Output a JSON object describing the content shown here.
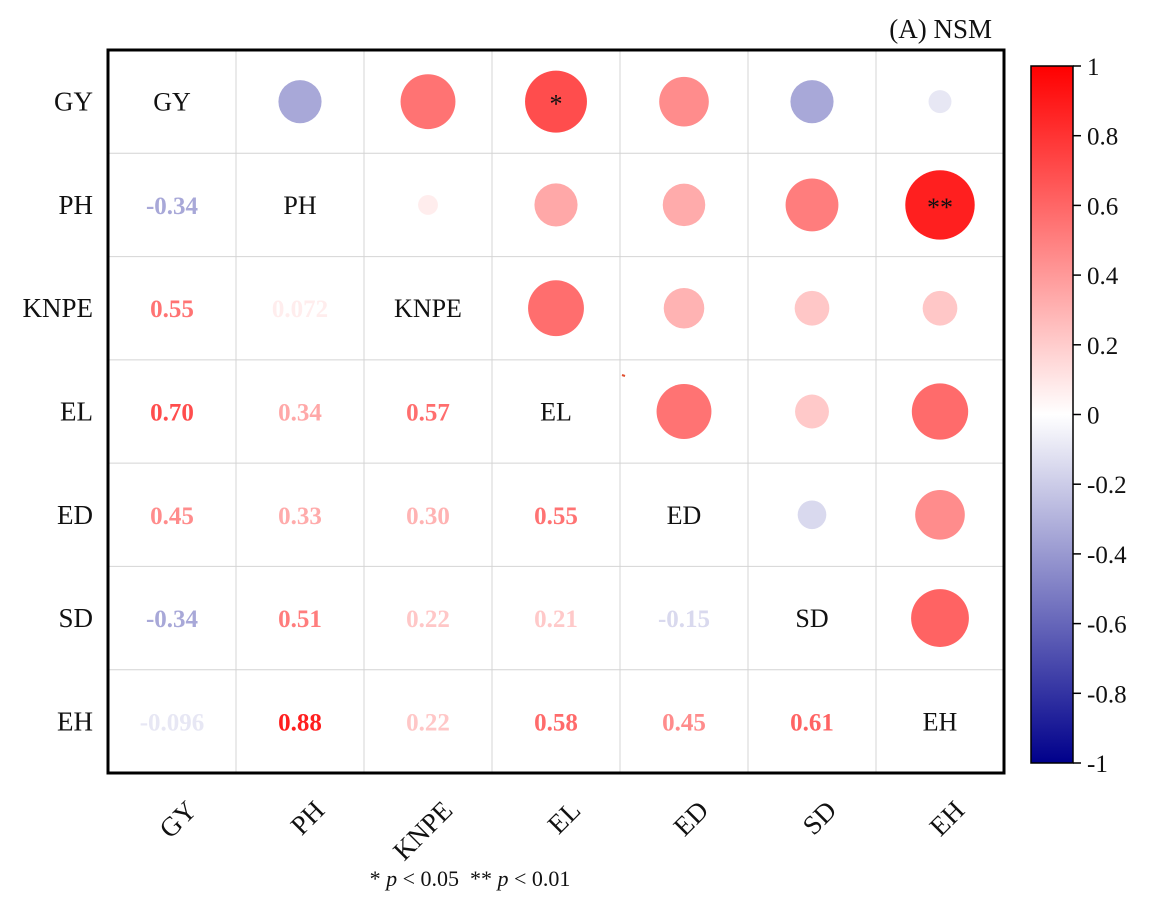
{
  "chart_data": {
    "type": "heatmap",
    "subtype": "correlation-matrix",
    "title": "(A) NSM",
    "variables": [
      "GY",
      "PH",
      "KNPE",
      "EL",
      "ED",
      "SD",
      "EH"
    ],
    "correlations": [
      [
        1,
        -0.34,
        0.55,
        0.7,
        0.45,
        -0.34,
        -0.096
      ],
      [
        -0.34,
        1,
        0.072,
        0.34,
        0.33,
        0.51,
        0.88
      ],
      [
        0.55,
        0.072,
        1,
        0.57,
        0.3,
        0.22,
        0.22
      ],
      [
        0.7,
        0.34,
        0.57,
        1,
        0.55,
        0.21,
        0.58
      ],
      [
        0.45,
        0.33,
        0.3,
        0.55,
        1,
        -0.15,
        0.45
      ],
      [
        -0.34,
        0.51,
        0.22,
        0.21,
        -0.15,
        1,
        0.61
      ],
      [
        -0.096,
        0.88,
        0.22,
        0.58,
        0.45,
        0.61,
        1
      ]
    ],
    "lower_labels": [
      [
        "",
        "",
        "",
        "",
        "",
        "",
        ""
      ],
      [
        "-0.34",
        "",
        "",
        "",
        "",
        "",
        ""
      ],
      [
        "0.55",
        "0.072",
        "",
        "",
        "",
        "",
        ""
      ],
      [
        "0.70",
        "0.34",
        "0.57",
        "",
        "",
        "",
        ""
      ],
      [
        "0.45",
        "0.33",
        "0.30",
        "0.55",
        "",
        "",
        ""
      ],
      [
        "-0.34",
        "0.51",
        "0.22",
        "0.21",
        "-0.15",
        "",
        ""
      ],
      [
        "-0.096",
        "0.88",
        "0.22",
        "0.58",
        "0.45",
        "0.61",
        ""
      ]
    ],
    "significance": [
      {
        "row": 0,
        "col": 3,
        "mark": "*"
      },
      {
        "row": 1,
        "col": 6,
        "mark": "**"
      }
    ],
    "upper_display": "circles",
    "lower_display": "numbers",
    "diagonal_display": "variable names",
    "colorbar": {
      "range": [
        -1,
        1
      ],
      "ticks": [
        "1",
        "0.8",
        "0.6",
        "0.4",
        "0.2",
        "0",
        "-0.2",
        "-0.4",
        "-0.6",
        "-0.8",
        "-1"
      ],
      "low_color": "#00008B",
      "mid_color": "#FFFFFF",
      "high_color": "#FF0000"
    },
    "footnote": {
      "p1_prefix": "* ",
      "p_symbol": "p",
      "p1_suffix": " < 0.05",
      "p2_prefix": "** ",
      "p2_suffix": " < 0.01"
    }
  }
}
